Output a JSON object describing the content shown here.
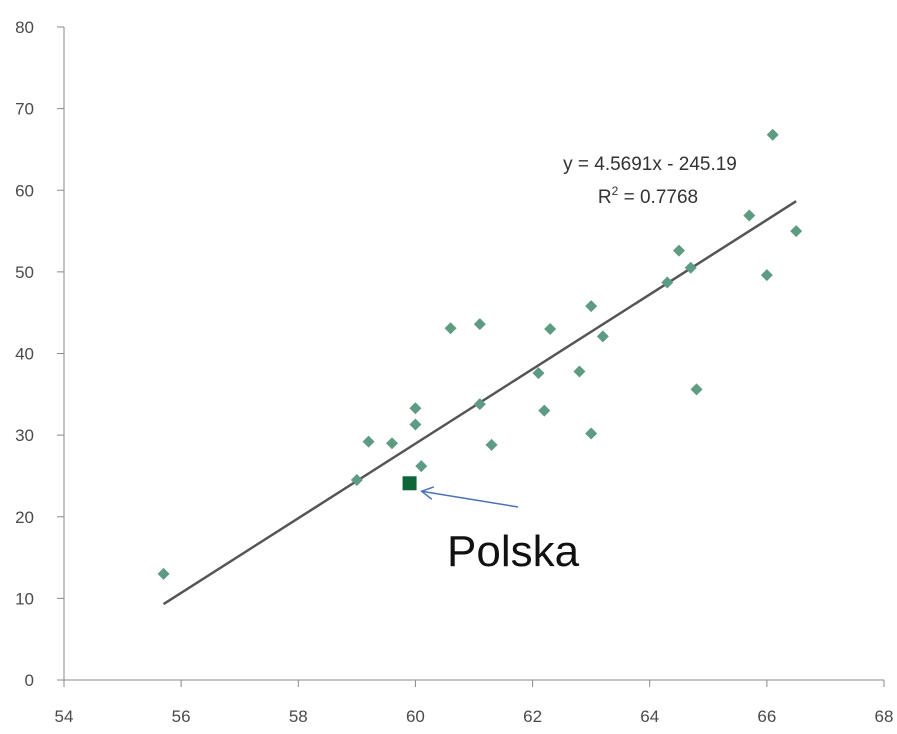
{
  "chart_data": {
    "type": "scatter",
    "xlim": [
      54,
      68
    ],
    "ylim": [
      0,
      80
    ],
    "x_ticks": [
      54,
      56,
      58,
      60,
      62,
      64,
      66,
      68
    ],
    "y_ticks": [
      0,
      10,
      20,
      30,
      40,
      50,
      60,
      70,
      80
    ],
    "grid": false,
    "series": [
      {
        "points": [
          {
            "x": 55.7,
            "y": 13.0
          },
          {
            "x": 59.0,
            "y": 24.5
          },
          {
            "x": 59.2,
            "y": 29.2
          },
          {
            "x": 59.6,
            "y": 29.0
          },
          {
            "x": 60.0,
            "y": 31.3
          },
          {
            "x": 60.0,
            "y": 33.3
          },
          {
            "x": 60.1,
            "y": 26.2
          },
          {
            "x": 60.6,
            "y": 43.1
          },
          {
            "x": 61.1,
            "y": 43.6
          },
          {
            "x": 61.1,
            "y": 33.8
          },
          {
            "x": 61.3,
            "y": 28.8
          },
          {
            "x": 62.1,
            "y": 37.6
          },
          {
            "x": 62.2,
            "y": 33.0
          },
          {
            "x": 62.3,
            "y": 43.0
          },
          {
            "x": 62.8,
            "y": 37.8
          },
          {
            "x": 63.0,
            "y": 45.8
          },
          {
            "x": 63.0,
            "y": 30.2
          },
          {
            "x": 63.2,
            "y": 42.1
          },
          {
            "x": 64.3,
            "y": 48.7
          },
          {
            "x": 64.5,
            "y": 52.6
          },
          {
            "x": 64.7,
            "y": 50.5
          },
          {
            "x": 64.8,
            "y": 35.6
          },
          {
            "x": 65.7,
            "y": 56.9
          },
          {
            "x": 66.0,
            "y": 49.6
          },
          {
            "x": 66.1,
            "y": 66.8
          },
          {
            "x": 66.5,
            "y": 55.0
          }
        ],
        "color": "#5e9b83"
      }
    ],
    "highlight": {
      "label": "Polska",
      "x": 59.9,
      "y": 24.1,
      "color": "#0c6637"
    },
    "trendline": {
      "slope": 4.5691,
      "intercept": -245.19,
      "x_range": [
        55.7,
        66.5
      ],
      "equation": "y = 4.5691x - 245.19",
      "r2_label": "R",
      "r2_value": "= 0.7768",
      "color": "#555555"
    },
    "arrow_color": "#4a72b8"
  }
}
